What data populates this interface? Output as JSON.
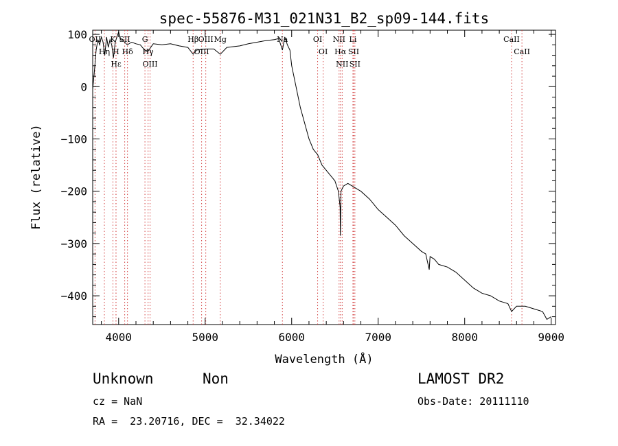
{
  "chart_data": {
    "type": "line",
    "title": "spec-55876-M31_021N31_B2_sp09-144.fits",
    "xlabel": "Wavelength (Å)",
    "ylabel": "Flux (relative)",
    "xlim": [
      3700,
      9050
    ],
    "ylim": [
      -455,
      108
    ],
    "xticks": [
      4000,
      5000,
      6000,
      7000,
      8000,
      9000
    ],
    "xtick_labels": [
      "4000",
      "5000",
      "6000",
      "7000",
      "8000",
      "9000"
    ],
    "yticks": [
      100,
      0,
      -100,
      -200,
      -300,
      -400
    ],
    "ytick_labels": [
      "100",
      "0",
      "−100",
      "−200",
      "−300",
      "−400"
    ],
    "grid": false,
    "series": [
      {
        "x": [
          3700,
          3720,
          3740,
          3760,
          3780,
          3800,
          3820,
          3840,
          3860,
          3880,
          3900,
          3920,
          3940,
          3960,
          3980,
          4000,
          4020,
          4050,
          4100,
          4150,
          4200,
          4250,
          4300,
          4340,
          4400,
          4500,
          4600,
          4700,
          4800,
          4861,
          4900,
          5000,
          5100,
          5175,
          5250,
          5400,
          5500,
          5600,
          5700,
          5800,
          5850,
          5893,
          5920,
          5950,
          5980,
          6000,
          6050,
          6100,
          6150,
          6200,
          6250,
          6300,
          6350,
          6400,
          6450,
          6500,
          6540,
          6560,
          6563,
          6570,
          6600,
          6650,
          6700,
          6750,
          6800,
          6900,
          7000,
          7100,
          7200,
          7300,
          7400,
          7500,
          7550,
          7590,
          7600,
          7650,
          7700,
          7800,
          7900,
          8000,
          8100,
          8200,
          8300,
          8400,
          8500,
          8542,
          8600,
          8700,
          8800,
          8900,
          8950,
          9000
        ],
        "y": [
          -5,
          30,
          70,
          90,
          80,
          95,
          85,
          60,
          95,
          75,
          90,
          80,
          55,
          85,
          95,
          105,
          90,
          88,
          80,
          85,
          82,
          80,
          70,
          68,
          82,
          80,
          82,
          78,
          75,
          62,
          70,
          72,
          72,
          62,
          75,
          78,
          82,
          85,
          88,
          90,
          92,
          70,
          95,
          80,
          70,
          40,
          0,
          -40,
          -70,
          -100,
          -120,
          -130,
          -150,
          -160,
          -170,
          -180,
          -200,
          -230,
          -285,
          -200,
          -190,
          -185,
          -190,
          -195,
          -200,
          -215,
          -235,
          -250,
          -265,
          -285,
          -300,
          -315,
          -320,
          -350,
          -325,
          -330,
          -340,
          -345,
          -355,
          -370,
          -385,
          -395,
          -400,
          -410,
          -415,
          -430,
          -420,
          -420,
          -425,
          -430,
          -445,
          -440
        ]
      }
    ],
    "lines": [
      {
        "name": "Hα",
        "wave": 6563
      },
      {
        "name": "SΙΙ",
        "wave": 6716
      },
      {
        "name": "SΙΙ",
        "wave": 6731
      },
      {
        "name": "NΙΙ",
        "wave": 6548
      },
      {
        "name": "NΙΙ",
        "wave": 6584
      },
      {
        "name": "Li",
        "wave": 6708
      },
      {
        "name": "OΙ",
        "wave": 6300
      },
      {
        "name": "OΙ",
        "wave": 6364
      },
      {
        "name": "Na",
        "wave": 5893
      },
      {
        "name": "Mg",
        "wave": 5175
      },
      {
        "name": "OΙΙΙ",
        "wave": 5007
      },
      {
        "name": "OΙΙΙ",
        "wave": 4959
      },
      {
        "name": "Hβ",
        "wave": 4861
      },
      {
        "name": "Hγ",
        "wave": 4340
      },
      {
        "name": "G",
        "wave": 4304
      },
      {
        "name": "OΙΙΙ",
        "wave": 4363
      },
      {
        "name": "Hδ",
        "wave": 4102
      },
      {
        "name": "SΙΙ",
        "wave": 4070
      },
      {
        "name": "H",
        "wave": 3969
      },
      {
        "name": "K",
        "wave": 3934
      },
      {
        "name": "Hε",
        "wave": 3970
      },
      {
        "name": "Hη",
        "wave": 3835
      },
      {
        "name": "OΙΙ",
        "wave": 3727
      },
      {
        "name": "CaΙΙ",
        "wave": 8542
      },
      {
        "name": "CaΙΙ",
        "wave": 8662
      }
    ]
  },
  "info": {
    "class": "Unknown",
    "subclass": "Non",
    "survey": "LAMOST DR2",
    "cz": "cz = NaN",
    "obs_date": "Obs-Date: 20111110",
    "coords": "RA =  23.20716, DEC =  32.34022"
  }
}
